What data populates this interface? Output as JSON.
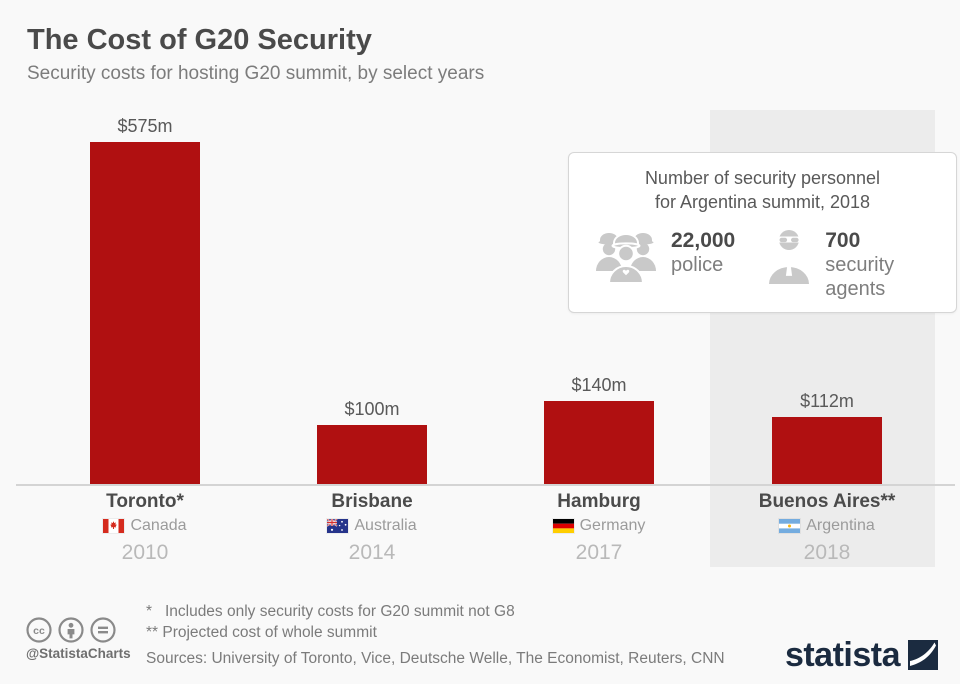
{
  "header": {
    "title": "The Cost of G20 Security",
    "subtitle": "Security costs for hosting G20 summit, by select years"
  },
  "chart_data": {
    "type": "bar",
    "title": "The Cost of G20 Security",
    "subtitle": "Security costs for hosting G20 summit, by select years",
    "unit": "USD millions",
    "categories": [
      "Toronto",
      "Brisbane",
      "Hamburg",
      "Buenos Aires"
    ],
    "values": [
      575,
      100,
      140,
      112
    ],
    "ylim": [
      0,
      600
    ],
    "grid": false,
    "value_axis_visible": false,
    "legend": "none",
    "bar_color": "#b01011",
    "highlight_band_color": "#ececec",
    "bars": [
      {
        "city_label": "Toronto*",
        "country": "Canada",
        "flag": "canada-flag-icon",
        "year": "2010",
        "value": 575,
        "value_label": "$575m",
        "highlighted": false
      },
      {
        "city_label": "Brisbane",
        "country": "Australia",
        "flag": "australia-flag-icon",
        "year": "2014",
        "value": 100,
        "value_label": "$100m",
        "highlighted": false
      },
      {
        "city_label": "Hamburg",
        "country": "Germany",
        "flag": "germany-flag-icon",
        "year": "2017",
        "value": 140,
        "value_label": "$140m",
        "highlighted": false
      },
      {
        "city_label": "Buenos Aires**",
        "country": "Argentina",
        "flag": "argentina-flag-icon",
        "year": "2018",
        "value": 112,
        "value_label": "$112m",
        "highlighted": true
      }
    ]
  },
  "callout": {
    "title_line1": "Number of security personnel",
    "title_line2": "for Argentina summit, 2018",
    "stats": [
      {
        "icon": "police-icon",
        "value": "22,000",
        "label": "police"
      },
      {
        "icon": "security-agent-icon",
        "value": "700",
        "label": "security agents"
      }
    ]
  },
  "footer": {
    "license_icons": [
      "cc-icon",
      "attribution-icon",
      "no-derivatives-icon"
    ],
    "credit_handle": "@StatistaCharts",
    "footnote_1": "*   Includes only security costs for G20 summit not G8",
    "footnote_2": "** Projected cost of whole summit",
    "sources": "Sources: University of Toronto, Vice, Deutsche Welle, The Economist, Reuters, CNN",
    "brand": "statista"
  }
}
